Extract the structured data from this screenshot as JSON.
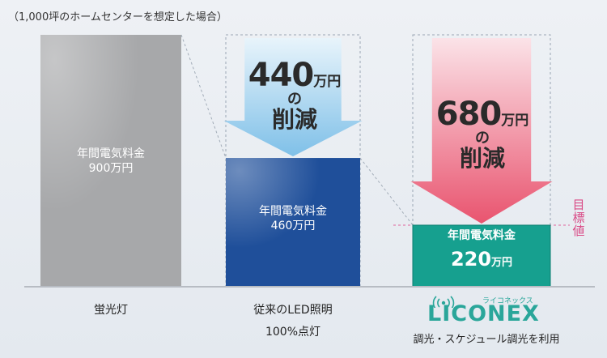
{
  "note": "（1,000坪のホームセンターを想定した場合）",
  "chart_data": {
    "type": "bar",
    "categories": [
      "蛍光灯",
      "従来のLED照明 100%点灯",
      "LICONEX 調光・スケジュール調光を利用"
    ],
    "values": [
      900,
      460,
      220
    ],
    "unit": "万円",
    "series": [
      {
        "values": [
          900,
          460,
          220
        ]
      }
    ],
    "ylim": [
      0,
      900
    ],
    "bar_colors": [
      "#a7a8aa",
      "#1f4f9a",
      "#16a08f"
    ],
    "reductions": [
      {
        "from": 0,
        "to": 1,
        "value": 440,
        "unit": "万円",
        "color": "#9fd0ef"
      },
      {
        "from": 0,
        "to": 2,
        "value": 680,
        "unit": "万円",
        "color": "#ec7187"
      }
    ],
    "target_value": 220
  },
  "bars": [
    {
      "label_line1": "年間電気料金",
      "label_line2": "900万円"
    },
    {
      "label_line1": "年間電気料金",
      "label_line2": "460万円"
    },
    {
      "label_line1": "年間電気料金",
      "value": "220",
      "unit": "万円"
    }
  ],
  "categories_display": [
    {
      "line1": "蛍光灯"
    },
    {
      "line1": "従来のLED照明",
      "line2": "100%点灯"
    },
    {
      "logo": "LICONEX",
      "logo_kana": "ライコネックス",
      "line2": "調光・スケジュール調光を利用"
    }
  ],
  "arrows": [
    {
      "value": "440",
      "unit": "万円",
      "no": "の",
      "reduction": "削減"
    },
    {
      "value": "680",
      "unit": "万円",
      "no": "の",
      "reduction": "削減"
    }
  ],
  "target_label": [
    "目",
    "標",
    "値"
  ]
}
